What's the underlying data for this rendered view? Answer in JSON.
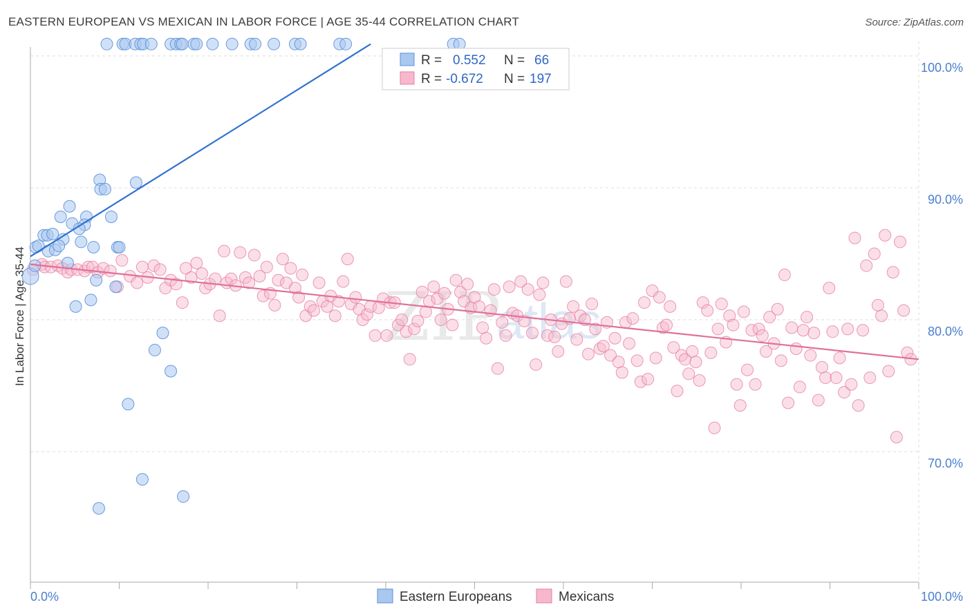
{
  "title": "EASTERN EUROPEAN VS MEXICAN IN LABOR FORCE | AGE 35-44 CORRELATION CHART",
  "source": "Source: ZipAtlas.com",
  "watermark": {
    "zip": "ZIP",
    "atlas": "atlas"
  },
  "colors": {
    "eastern_fill": "#a9c8f0",
    "eastern_stroke": "#5b8fd8",
    "eastern_line": "#2f72d0",
    "mexican_fill": "#f7b8cc",
    "mexican_stroke": "#e67fa0",
    "mexican_line": "#e0709a",
    "tick_text": "#4a7fd0",
    "grid": "#dddddd"
  },
  "legend": {
    "rows": [
      {
        "r_label": "R =",
        "r_value": "0.552",
        "n_label": "N =",
        "n_value": "66"
      },
      {
        "r_label": "R =",
        "r_value": "-0.672",
        "n_label": "N =",
        "n_value": "197"
      }
    ]
  },
  "bottom_legend": [
    "Eastern Europeans",
    "Mexicans"
  ],
  "chart_data": {
    "type": "scatter",
    "title": "EASTERN EUROPEAN VS MEXICAN IN LABOR FORCE | AGE 35-44 CORRELATION CHART",
    "xlabel": "",
    "ylabel": "In Labor Force | Age 35-44",
    "xlim": [
      0,
      100
    ],
    "ylim": [
      60,
      101.5
    ],
    "x_tick_labels": [
      {
        "value": 0,
        "label": "0.0%"
      },
      {
        "value": 100,
        "label": "100.0%"
      }
    ],
    "y_tick_labels": [
      {
        "value": 70,
        "label": "70.0%"
      },
      {
        "value": 80,
        "label": "80.0%"
      },
      {
        "value": 90,
        "label": "90.0%"
      },
      {
        "value": 100,
        "label": "100.0%"
      }
    ],
    "grid": true,
    "legend_position": "top-center",
    "series": [
      {
        "name": "Eastern Europeans",
        "r": 0.552,
        "n": 66,
        "trend": {
          "x": [
            0,
            38.3
          ],
          "y": [
            84.8,
            100.9
          ]
        },
        "points": [
          [
            8.6,
            100.9
          ],
          [
            10.4,
            100.9
          ],
          [
            10.7,
            100.9
          ],
          [
            11.8,
            100.9
          ],
          [
            12.4,
            100.9
          ],
          [
            12.7,
            100.9
          ],
          [
            13.6,
            100.9
          ],
          [
            15.8,
            100.9
          ],
          [
            16.4,
            100.9
          ],
          [
            16.9,
            100.9
          ],
          [
            17.1,
            100.9
          ],
          [
            18.4,
            100.9
          ],
          [
            18.7,
            100.9
          ],
          [
            20.5,
            100.9
          ],
          [
            22.7,
            100.9
          ],
          [
            24.8,
            100.9
          ],
          [
            25.3,
            100.9
          ],
          [
            27.4,
            100.9
          ],
          [
            29.8,
            100.9
          ],
          [
            30.4,
            100.9
          ],
          [
            34.8,
            100.9
          ],
          [
            35.5,
            100.9
          ],
          [
            47.6,
            100.9
          ],
          [
            48.3,
            100.9
          ],
          [
            7.8,
            90.6
          ],
          [
            7.9,
            89.9
          ],
          [
            8.4,
            89.9
          ],
          [
            11.9,
            90.4
          ],
          [
            4.4,
            88.6
          ],
          [
            3.4,
            87.8
          ],
          [
            4.7,
            87.3
          ],
          [
            6.3,
            87.8
          ],
          [
            6.1,
            87.2
          ],
          [
            5.5,
            86.9
          ],
          [
            9.1,
            87.8
          ],
          [
            1.5,
            86.4
          ],
          [
            1.9,
            86.4
          ],
          [
            2.5,
            86.5
          ],
          [
            3.7,
            86.1
          ],
          [
            0.6,
            85.5
          ],
          [
            0.9,
            85.6
          ],
          [
            2.0,
            85.2
          ],
          [
            2.8,
            85.3
          ],
          [
            3.2,
            85.6
          ],
          [
            5.7,
            85.9
          ],
          [
            7.1,
            85.5
          ],
          [
            9.8,
            85.5
          ],
          [
            10.0,
            85.5
          ],
          [
            4.2,
            84.3
          ],
          [
            0.0,
            83.3
          ],
          [
            0.5,
            84.1
          ],
          [
            7.4,
            83.0
          ],
          [
            9.6,
            82.5
          ],
          [
            5.1,
            81.0
          ],
          [
            6.8,
            81.5
          ],
          [
            14.9,
            79.0
          ],
          [
            14.0,
            77.7
          ],
          [
            15.8,
            76.1
          ],
          [
            11.0,
            73.6
          ],
          [
            12.6,
            67.9
          ],
          [
            17.2,
            66.6
          ],
          [
            7.7,
            65.7
          ]
        ]
      },
      {
        "name": "Mexicans",
        "r": -0.672,
        "n": 197,
        "trend": {
          "x": [
            0,
            100
          ],
          "y": [
            84.2,
            77.0
          ]
        },
        "points": [
          [
            0.3,
            83.8
          ],
          [
            1.3,
            84.2
          ],
          [
            1.6,
            84.0
          ],
          [
            2.3,
            84.0
          ],
          [
            3.1,
            84.1
          ],
          [
            3.6,
            83.9
          ],
          [
            4.2,
            83.6
          ],
          [
            4.6,
            83.8
          ],
          [
            5.3,
            83.8
          ],
          [
            6.1,
            83.7
          ],
          [
            6.5,
            84.0
          ],
          [
            7.0,
            84.0
          ],
          [
            7.6,
            83.6
          ],
          [
            8.2,
            83.9
          ],
          [
            9.0,
            83.7
          ],
          [
            9.8,
            82.5
          ],
          [
            10.3,
            84.5
          ],
          [
            11.2,
            83.3
          ],
          [
            12.0,
            82.8
          ],
          [
            12.6,
            84.0
          ],
          [
            13.2,
            83.2
          ],
          [
            13.9,
            84.1
          ],
          [
            14.6,
            83.8
          ],
          [
            15.2,
            82.4
          ],
          [
            15.8,
            83.0
          ],
          [
            16.4,
            82.7
          ],
          [
            17.1,
            81.3
          ],
          [
            17.5,
            83.9
          ],
          [
            18.1,
            83.2
          ],
          [
            18.7,
            84.3
          ],
          [
            19.3,
            83.5
          ],
          [
            19.7,
            82.4
          ],
          [
            20.2,
            82.7
          ],
          [
            20.8,
            83.1
          ],
          [
            21.3,
            80.3
          ],
          [
            21.8,
            85.2
          ],
          [
            22.1,
            82.8
          ],
          [
            22.6,
            83.1
          ],
          [
            23.1,
            82.6
          ],
          [
            23.6,
            85.1
          ],
          [
            24.2,
            83.2
          ],
          [
            24.6,
            82.8
          ],
          [
            25.2,
            84.9
          ],
          [
            25.8,
            83.3
          ],
          [
            26.2,
            81.8
          ],
          [
            26.6,
            84.0
          ],
          [
            27.0,
            82.0
          ],
          [
            27.5,
            81.1
          ],
          [
            27.9,
            83.0
          ],
          [
            28.4,
            84.6
          ],
          [
            28.8,
            82.8
          ],
          [
            29.3,
            83.9
          ],
          [
            29.8,
            82.4
          ],
          [
            30.2,
            81.7
          ],
          [
            30.6,
            83.4
          ],
          [
            31.0,
            80.3
          ],
          [
            31.5,
            81.0
          ],
          [
            31.9,
            80.7
          ],
          [
            32.5,
            82.8
          ],
          [
            32.9,
            81.4
          ],
          [
            33.4,
            81.0
          ],
          [
            33.8,
            81.8
          ],
          [
            34.3,
            80.3
          ],
          [
            34.7,
            81.4
          ],
          [
            35.2,
            82.9
          ],
          [
            35.7,
            84.6
          ],
          [
            36.1,
            81.2
          ],
          [
            36.6,
            81.7
          ],
          [
            37.0,
            80.8
          ],
          [
            37.4,
            80.0
          ],
          [
            37.9,
            80.4
          ],
          [
            38.3,
            81.0
          ],
          [
            38.8,
            78.8
          ],
          [
            39.2,
            80.9
          ],
          [
            39.7,
            81.6
          ],
          [
            40.1,
            78.8
          ],
          [
            40.5,
            81.3
          ],
          [
            41.0,
            81.3
          ],
          [
            41.4,
            79.6
          ],
          [
            41.8,
            80.0
          ],
          [
            42.3,
            79.1
          ],
          [
            42.7,
            77.0
          ],
          [
            43.2,
            79.3
          ],
          [
            43.6,
            79.9
          ],
          [
            44.1,
            82.1
          ],
          [
            44.5,
            80.6
          ],
          [
            44.9,
            81.4
          ],
          [
            45.4,
            82.5
          ],
          [
            45.8,
            81.6
          ],
          [
            46.2,
            80.0
          ],
          [
            46.6,
            82.0
          ],
          [
            47.0,
            80.8
          ],
          [
            47.5,
            79.6
          ],
          [
            47.9,
            83.0
          ],
          [
            48.4,
            82.1
          ],
          [
            48.8,
            81.4
          ],
          [
            49.2,
            82.7
          ],
          [
            49.6,
            80.9
          ],
          [
            50.0,
            81.7
          ],
          [
            50.5,
            81.0
          ],
          [
            50.9,
            79.4
          ],
          [
            51.3,
            78.6
          ],
          [
            51.8,
            80.7
          ],
          [
            52.2,
            82.3
          ],
          [
            52.6,
            76.3
          ],
          [
            53.1,
            79.8
          ],
          [
            53.5,
            78.8
          ],
          [
            53.9,
            82.5
          ],
          [
            54.3,
            80.5
          ],
          [
            54.8,
            80.3
          ],
          [
            55.2,
            82.9
          ],
          [
            55.6,
            79.9
          ],
          [
            56.0,
            82.3
          ],
          [
            56.5,
            79.0
          ],
          [
            56.9,
            76.6
          ],
          [
            57.3,
            81.9
          ],
          [
            57.7,
            82.8
          ],
          [
            58.2,
            78.8
          ],
          [
            58.6,
            80.0
          ],
          [
            59.0,
            78.7
          ],
          [
            59.4,
            77.6
          ],
          [
            59.8,
            79.7
          ],
          [
            60.3,
            82.9
          ],
          [
            60.7,
            80.1
          ],
          [
            61.1,
            81.0
          ],
          [
            61.5,
            78.5
          ],
          [
            61.9,
            80.3
          ],
          [
            62.4,
            80.0
          ],
          [
            62.8,
            77.4
          ],
          [
            63.2,
            81.2
          ],
          [
            63.6,
            79.3
          ],
          [
            64.1,
            77.8
          ],
          [
            64.5,
            78.0
          ],
          [
            64.9,
            79.8
          ],
          [
            65.3,
            77.3
          ],
          [
            65.8,
            78.6
          ],
          [
            66.2,
            76.8
          ],
          [
            66.6,
            76.0
          ],
          [
            67.0,
            79.8
          ],
          [
            67.4,
            78.2
          ],
          [
            67.8,
            80.1
          ],
          [
            68.3,
            76.9
          ],
          [
            68.7,
            75.3
          ],
          [
            69.1,
            81.3
          ],
          [
            69.5,
            75.5
          ],
          [
            70.0,
            82.2
          ],
          [
            70.4,
            77.1
          ],
          [
            70.8,
            81.7
          ],
          [
            71.2,
            79.4
          ],
          [
            71.6,
            79.6
          ],
          [
            72.0,
            81.0
          ],
          [
            72.4,
            77.9
          ],
          [
            72.8,
            74.6
          ],
          [
            73.3,
            77.3
          ],
          [
            73.7,
            77.0
          ],
          [
            74.1,
            75.9
          ],
          [
            74.5,
            77.6
          ],
          [
            74.9,
            76.8
          ],
          [
            75.3,
            75.4
          ],
          [
            75.7,
            81.3
          ],
          [
            76.2,
            80.7
          ],
          [
            76.6,
            77.5
          ],
          [
            77.0,
            71.8
          ],
          [
            77.4,
            79.3
          ],
          [
            77.8,
            81.2
          ],
          [
            78.3,
            78.3
          ],
          [
            78.7,
            80.3
          ],
          [
            79.1,
            79.6
          ],
          [
            79.5,
            75.1
          ],
          [
            79.9,
            73.5
          ],
          [
            80.3,
            80.6
          ],
          [
            80.7,
            76.2
          ],
          [
            81.2,
            79.2
          ],
          [
            81.6,
            75.1
          ],
          [
            82.0,
            79.3
          ],
          [
            82.4,
            78.8
          ],
          [
            82.8,
            77.6
          ],
          [
            83.2,
            80.2
          ],
          [
            83.7,
            78.2
          ],
          [
            84.1,
            80.8
          ],
          [
            84.5,
            76.9
          ],
          [
            84.9,
            83.4
          ],
          [
            85.3,
            73.7
          ],
          [
            85.7,
            79.4
          ],
          [
            86.2,
            77.8
          ],
          [
            86.6,
            74.9
          ],
          [
            87.0,
            79.2
          ],
          [
            87.4,
            80.2
          ],
          [
            87.8,
            77.3
          ],
          [
            88.2,
            79.0
          ],
          [
            88.7,
            73.9
          ],
          [
            89.1,
            76.4
          ],
          [
            89.5,
            75.6
          ],
          [
            89.9,
            82.4
          ],
          [
            90.3,
            79.1
          ],
          [
            90.7,
            75.6
          ],
          [
            91.1,
            77.1
          ],
          [
            91.6,
            74.5
          ],
          [
            92.0,
            79.3
          ],
          [
            92.4,
            75.1
          ],
          [
            92.8,
            86.2
          ],
          [
            93.2,
            73.5
          ],
          [
            93.7,
            79.2
          ],
          [
            94.1,
            84.1
          ],
          [
            94.5,
            75.6
          ],
          [
            95.0,
            85.0
          ],
          [
            95.4,
            81.1
          ],
          [
            95.8,
            80.3
          ],
          [
            96.2,
            86.4
          ],
          [
            96.6,
            76.1
          ],
          [
            97.1,
            83.6
          ],
          [
            97.5,
            71.1
          ],
          [
            97.9,
            85.9
          ],
          [
            98.3,
            80.7
          ],
          [
            98.7,
            77.5
          ],
          [
            99.1,
            77.0
          ]
        ]
      }
    ]
  }
}
